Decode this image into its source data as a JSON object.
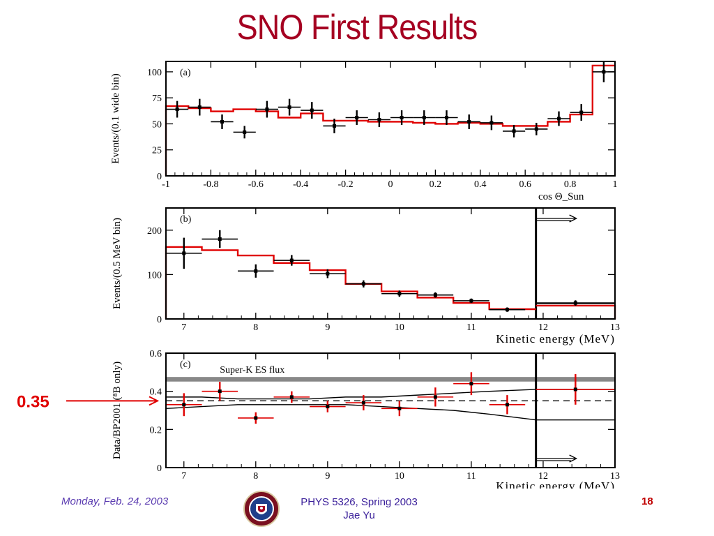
{
  "slide": {
    "title": "SNO First Results",
    "footer_date": "Monday, Feb. 24, 2003",
    "footer_course": "PHYS 5326, Spring 2003",
    "footer_author": "Jae Yu",
    "page_number": "18",
    "pointer_label": "0.35"
  },
  "colors": {
    "title": "#a50021",
    "fit_histogram": "#e00000",
    "sk_band": "#888888",
    "pointer": "#e00000"
  },
  "chart_data": [
    {
      "type": "line",
      "panel_label": "(a)",
      "xlabel": "cos Θ_Sun",
      "ylabel": "Events/(0.1 wide bin)",
      "xlim": [
        -1,
        1
      ],
      "ylim": [
        0,
        110
      ],
      "xticks": [
        -1,
        -0.8,
        -0.6,
        -0.4,
        -0.2,
        0,
        0.2,
        0.4,
        0.6,
        0.8,
        1
      ],
      "xtick_labels": [
        "-1",
        "-0.8",
        "-0.6",
        "-0.4",
        "-0.2",
        "0",
        "0.2",
        "0.4",
        "0.6",
        "0.8",
        "1"
      ],
      "yticks": [
        0,
        25,
        50,
        75,
        100
      ],
      "ytick_labels": [
        "0",
        "25",
        "50",
        "75",
        "100"
      ],
      "series": [
        {
          "kind": "data",
          "bin_width": 0.1,
          "x": [
            -0.95,
            -0.85,
            -0.75,
            -0.65,
            -0.55,
            -0.45,
            -0.35,
            -0.25,
            -0.15,
            -0.05,
            0.05,
            0.15,
            0.25,
            0.35,
            0.45,
            0.55,
            0.65,
            0.75,
            0.85,
            0.95
          ],
          "y": [
            64,
            66,
            52,
            42,
            64,
            66,
            63,
            48,
            56,
            54,
            56,
            56,
            56,
            52,
            51,
            43,
            45,
            55,
            61,
            100
          ],
          "yerr": [
            8,
            8,
            7,
            6,
            8,
            8,
            8,
            7,
            7,
            7,
            7,
            7,
            7,
            7,
            7,
            6,
            6,
            7,
            8,
            10
          ]
        },
        {
          "kind": "fit",
          "edges": [
            -1,
            -0.9,
            -0.8,
            -0.7,
            -0.6,
            -0.5,
            -0.4,
            -0.3,
            -0.2,
            -0.1,
            0,
            0.1,
            0.2,
            0.3,
            0.4,
            0.5,
            0.6,
            0.7,
            0.8,
            0.9,
            1
          ],
          "y": [
            67,
            65,
            62,
            64,
            62,
            56,
            60,
            53,
            53,
            52,
            52,
            51,
            50,
            51,
            50,
            48,
            48,
            52,
            59,
            106
          ]
        }
      ]
    },
    {
      "type": "line",
      "panel_label": "(b)",
      "xlabel": "Kinetic energy (MeV)",
      "ylabel": "Events/(0.5 MeV bin)",
      "xlim": [
        6.75,
        13
      ],
      "ylim": [
        0,
        250
      ],
      "xticks": [
        7,
        8,
        9,
        10,
        11,
        12,
        13
      ],
      "xtick_labels": [
        "7",
        "8",
        "9",
        "10",
        "11",
        "12",
        "13"
      ],
      "yticks": [
        0,
        100,
        200
      ],
      "ytick_labels": [
        "0",
        "100",
        "200"
      ],
      "threshold_x": 11.9,
      "series": [
        {
          "kind": "data",
          "x": [
            7.0,
            7.5,
            8.0,
            8.5,
            9.0,
            9.5,
            10.0,
            10.5,
            11.0,
            11.5,
            12.45
          ],
          "xerr": [
            0.25,
            0.25,
            0.25,
            0.25,
            0.25,
            0.25,
            0.25,
            0.25,
            0.25,
            0.25,
            0.55
          ],
          "y": [
            148,
            180,
            108,
            132,
            102,
            79,
            57,
            54,
            41,
            21,
            36
          ],
          "yerr": [
            35,
            20,
            15,
            12,
            10,
            8,
            7,
            6,
            5,
            5,
            6
          ]
        },
        {
          "kind": "fit",
          "edges": [
            6.75,
            7.25,
            7.75,
            8.25,
            8.75,
            9.25,
            9.75,
            10.25,
            10.75,
            11.25,
            11.9
          ],
          "y": [
            162,
            155,
            143,
            126,
            110,
            79,
            62,
            48,
            36,
            22
          ],
          "overflow": {
            "from": 11.9,
            "to": 13,
            "y": 30
          }
        }
      ]
    },
    {
      "type": "line",
      "panel_label": "(c)",
      "xlabel": "Kinetic energy (MeV)",
      "ylabel": "Data/BP2001 (⁸B only)",
      "xlim": [
        6.75,
        13
      ],
      "ylim": [
        0,
        0.6
      ],
      "xticks": [
        7,
        8,
        9,
        10,
        11,
        12,
        13
      ],
      "xtick_labels": [
        "7",
        "8",
        "9",
        "10",
        "11",
        "12",
        "13"
      ],
      "yticks": [
        0,
        0.2,
        0.4,
        0.6
      ],
      "ytick_labels": [
        "0",
        "0.2",
        "0.4",
        "0.6"
      ],
      "threshold_x": 11.9,
      "band": {
        "label": "Super-K ES flux",
        "y_low": 0.451,
        "y_high": 0.475
      },
      "series": [
        {
          "kind": "data",
          "x": [
            7.0,
            7.5,
            8.0,
            8.5,
            9.0,
            9.5,
            10.0,
            10.5,
            11.0,
            11.5,
            12.45
          ],
          "xerr": [
            0.25,
            0.25,
            0.25,
            0.25,
            0.25,
            0.25,
            0.25,
            0.25,
            0.25,
            0.25,
            0.55
          ],
          "y": [
            0.33,
            0.4,
            0.26,
            0.37,
            0.32,
            0.34,
            0.31,
            0.37,
            0.44,
            0.33,
            0.41
          ],
          "yerr": [
            0.06,
            0.05,
            0.03,
            0.03,
            0.03,
            0.04,
            0.04,
            0.05,
            0.06,
            0.05,
            0.08
          ]
        },
        {
          "kind": "expectation",
          "x": [
            6.75,
            7.25,
            7.75,
            8.25,
            8.75,
            9.25,
            9.75,
            10.25,
            10.75,
            11.25,
            11.9,
            13
          ],
          "center": [
            0.35,
            0.35,
            0.35,
            0.35,
            0.35,
            0.35,
            0.35,
            0.35,
            0.35,
            0.35,
            0.35,
            0.35
          ],
          "upper": [
            0.37,
            0.37,
            0.36,
            0.36,
            0.36,
            0.37,
            0.37,
            0.38,
            0.39,
            0.4,
            0.41,
            0.41
          ],
          "lower": [
            0.31,
            0.32,
            0.33,
            0.33,
            0.33,
            0.33,
            0.32,
            0.31,
            0.3,
            0.28,
            0.25,
            0.25
          ]
        }
      ]
    }
  ]
}
